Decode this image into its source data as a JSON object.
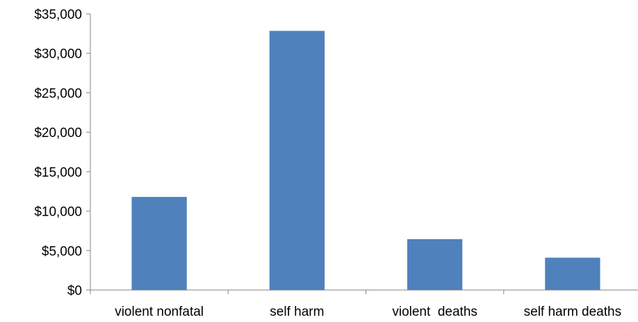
{
  "chart_data": {
    "type": "bar",
    "title": "",
    "xlabel": "",
    "ylabel": "",
    "categories": [
      "violent nonfatal",
      "self harm",
      "violent  deaths",
      "self harm deaths"
    ],
    "values": [
      11800,
      32850,
      6450,
      4100
    ],
    "ylim": [
      0,
      35000
    ],
    "yticks": [
      0,
      5000,
      10000,
      15000,
      20000,
      25000,
      30000,
      35000
    ],
    "ytick_labels": [
      "$0",
      "$5,000",
      "$10,000",
      "$15,000",
      "$20,000",
      "$25,000",
      "$30,000",
      "$35,000"
    ],
    "bar_color": "#4f81bd",
    "grid": false,
    "legend": "none"
  }
}
